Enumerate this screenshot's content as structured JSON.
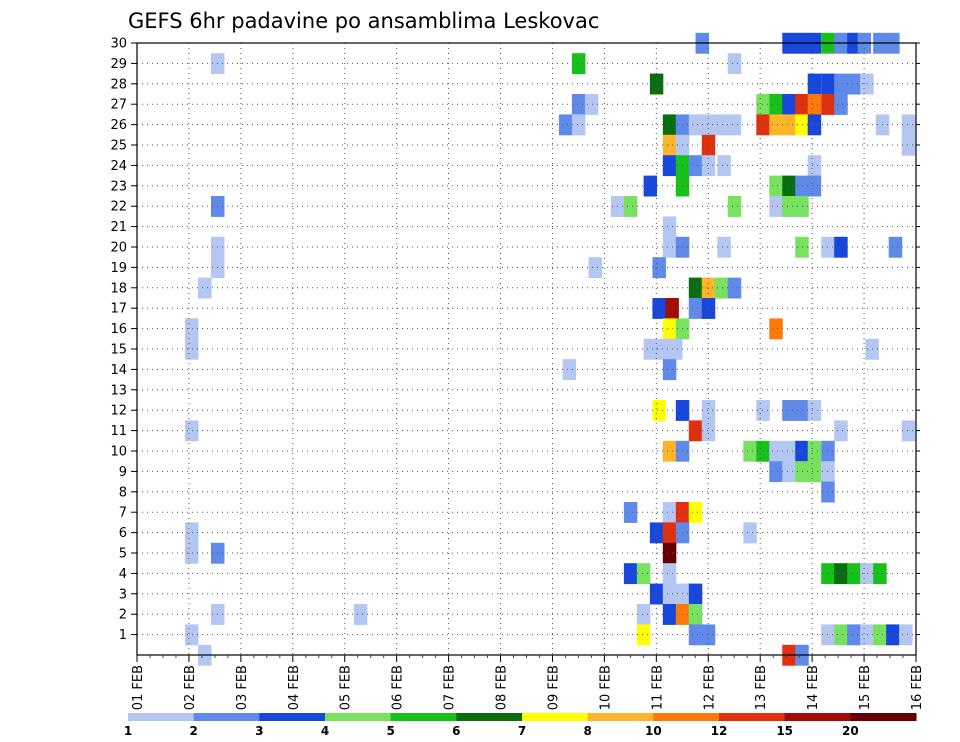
{
  "chart_data": {
    "type": "heatmap",
    "title": "GEFS 6hr padavine po ansamblima Leskovac",
    "xlabel": "",
    "ylabel": "",
    "x_range": [
      0,
      15
    ],
    "y_range": [
      0,
      30
    ],
    "y_ticks": [
      "1",
      "2",
      "3",
      "4",
      "5",
      "6",
      "7",
      "8",
      "9",
      "10",
      "11",
      "12",
      "13",
      "14",
      "15",
      "16",
      "17",
      "18",
      "19",
      "20",
      "21",
      "22",
      "23",
      "24",
      "25",
      "26",
      "27",
      "28",
      "29",
      "30"
    ],
    "x_ticks": [
      "01 FEB",
      "02 FEB",
      "03 FEB",
      "04 FEB",
      "05 FEB",
      "06 FEB",
      "07 FEB",
      "08 FEB",
      "09 FEB",
      "10 FEB",
      "11 FEB",
      "12 FEB",
      "13 FEB",
      "14 FEB",
      "15 FEB",
      "16 FEB"
    ],
    "grid": true,
    "colorbar": {
      "levels": [
        "1",
        "2",
        "3",
        "4",
        "5",
        "6",
        "7",
        "8",
        "10",
        "12",
        "15",
        "20"
      ],
      "colors": [
        "#b4c6f2",
        "#5f8ae9",
        "#1748db",
        "#78e260",
        "#18c01a",
        "#0a6e10",
        "#ffff00",
        "#ffb42a",
        "#fc7a0a",
        "#e1300f",
        "#a00c06",
        "#640000"
      ]
    },
    "cells": [
      [
        10.88,
        30,
        1
      ],
      [
        12.55,
        30,
        2
      ],
      [
        12.8,
        30,
        2
      ],
      [
        13.04,
        30,
        2
      ],
      [
        13.3,
        30,
        4
      ],
      [
        13.55,
        30,
        1
      ],
      [
        13.8,
        30,
        2
      ],
      [
        14.0,
        30,
        1
      ],
      [
        14.3,
        30,
        1
      ],
      [
        14.55,
        30,
        1
      ],
      [
        1.55,
        29,
        0
      ],
      [
        8.5,
        29,
        4
      ],
      [
        11.5,
        29,
        0
      ],
      [
        10.0,
        28,
        5
      ],
      [
        13.04,
        28,
        2
      ],
      [
        13.3,
        28,
        2
      ],
      [
        13.55,
        28,
        1
      ],
      [
        13.8,
        28,
        1
      ],
      [
        14.05,
        28,
        0
      ],
      [
        8.5,
        27,
        1
      ],
      [
        8.75,
        27,
        0
      ],
      [
        12.05,
        27,
        3
      ],
      [
        12.3,
        27,
        4
      ],
      [
        12.55,
        27,
        2
      ],
      [
        12.8,
        27,
        9
      ],
      [
        13.04,
        27,
        8
      ],
      [
        13.3,
        27,
        9
      ],
      [
        13.55,
        27,
        1
      ],
      [
        8.25,
        26,
        1
      ],
      [
        8.5,
        26,
        0
      ],
      [
        10.25,
        26,
        5
      ],
      [
        10.5,
        26,
        1
      ],
      [
        10.75,
        26,
        0
      ],
      [
        11.0,
        26,
        0
      ],
      [
        11.25,
        26,
        0
      ],
      [
        11.5,
        26,
        0
      ],
      [
        12.05,
        26,
        9
      ],
      [
        12.3,
        26,
        7
      ],
      [
        12.55,
        26,
        7
      ],
      [
        12.8,
        26,
        6
      ],
      [
        13.04,
        26,
        2
      ],
      [
        14.35,
        26,
        0
      ],
      [
        14.85,
        26,
        0
      ],
      [
        10.25,
        25,
        7
      ],
      [
        10.5,
        25,
        0
      ],
      [
        11.0,
        25,
        9
      ],
      [
        14.85,
        25,
        0
      ],
      [
        10.25,
        24,
        2
      ],
      [
        10.5,
        24,
        4
      ],
      [
        10.75,
        24,
        1
      ],
      [
        11.0,
        24,
        0
      ],
      [
        11.3,
        24,
        0
      ],
      [
        13.04,
        24,
        0
      ],
      [
        9.88,
        23,
        2
      ],
      [
        10.5,
        23,
        4
      ],
      [
        12.3,
        23,
        3
      ],
      [
        12.55,
        23,
        5
      ],
      [
        12.8,
        23,
        1
      ],
      [
        13.04,
        23,
        1
      ],
      [
        1.55,
        22,
        1
      ],
      [
        9.25,
        22,
        0
      ],
      [
        9.5,
        22,
        3
      ],
      [
        11.5,
        22,
        3
      ],
      [
        12.3,
        22,
        0
      ],
      [
        12.55,
        22,
        3
      ],
      [
        12.8,
        22,
        3
      ],
      [
        10.25,
        21,
        0
      ],
      [
        1.55,
        20,
        0
      ],
      [
        10.25,
        20,
        0
      ],
      [
        10.5,
        20,
        1
      ],
      [
        11.3,
        20,
        0
      ],
      [
        12.8,
        20,
        3
      ],
      [
        13.3,
        20,
        0
      ],
      [
        13.55,
        20,
        2
      ],
      [
        14.6,
        20,
        1
      ],
      [
        1.55,
        19,
        0
      ],
      [
        8.82,
        19,
        0
      ],
      [
        10.05,
        19,
        1
      ],
      [
        1.3,
        18,
        0
      ],
      [
        10.75,
        18,
        5
      ],
      [
        11.0,
        18,
        7
      ],
      [
        11.25,
        18,
        3
      ],
      [
        11.5,
        18,
        1
      ],
      [
        10.05,
        17,
        2
      ],
      [
        10.3,
        17,
        10
      ],
      [
        10.75,
        17,
        1
      ],
      [
        11.0,
        17,
        2
      ],
      [
        1.05,
        16,
        0
      ],
      [
        10.25,
        16,
        6
      ],
      [
        10.5,
        16,
        3
      ],
      [
        12.3,
        16,
        8
      ],
      [
        1.05,
        15,
        0
      ],
      [
        9.88,
        15,
        0
      ],
      [
        10.12,
        15,
        0
      ],
      [
        10.37,
        15,
        0
      ],
      [
        14.15,
        15,
        0
      ],
      [
        10.25,
        14,
        1
      ],
      [
        8.32,
        14,
        0
      ],
      [
        10.05,
        12,
        6
      ],
      [
        10.5,
        12,
        2
      ],
      [
        11.0,
        12,
        0
      ],
      [
        12.05,
        12,
        0
      ],
      [
        12.55,
        12,
        1
      ],
      [
        12.8,
        12,
        1
      ],
      [
        13.04,
        12,
        0
      ],
      [
        1.05,
        11,
        0
      ],
      [
        10.75,
        11,
        9
      ],
      [
        11.0,
        11,
        0
      ],
      [
        13.55,
        11,
        0
      ],
      [
        14.85,
        11,
        0
      ],
      [
        10.25,
        10,
        7
      ],
      [
        10.5,
        10,
        1
      ],
      [
        11.8,
        10,
        3
      ],
      [
        12.05,
        10,
        4
      ],
      [
        12.3,
        10,
        0
      ],
      [
        12.55,
        10,
        0
      ],
      [
        12.8,
        10,
        2
      ],
      [
        13.04,
        10,
        3
      ],
      [
        13.3,
        10,
        1
      ],
      [
        12.3,
        9,
        1
      ],
      [
        12.55,
        9,
        0
      ],
      [
        12.8,
        9,
        3
      ],
      [
        13.04,
        9,
        3
      ],
      [
        13.3,
        9,
        0
      ],
      [
        13.3,
        8,
        1
      ],
      [
        9.5,
        7,
        1
      ],
      [
        10.25,
        7,
        0
      ],
      [
        10.5,
        7,
        9
      ],
      [
        10.75,
        7,
        6
      ],
      [
        1.05,
        6,
        0
      ],
      [
        10.0,
        6,
        2
      ],
      [
        10.25,
        6,
        9
      ],
      [
        10.5,
        6,
        1
      ],
      [
        11.8,
        6,
        0
      ],
      [
        1.05,
        5,
        0
      ],
      [
        1.55,
        5,
        1
      ],
      [
        10.25,
        5,
        11
      ],
      [
        9.5,
        4,
        2
      ],
      [
        9.75,
        4,
        3
      ],
      [
        10.25,
        4,
        0
      ],
      [
        13.3,
        4,
        4
      ],
      [
        13.55,
        4,
        5
      ],
      [
        13.8,
        4,
        4
      ],
      [
        14.05,
        4,
        0
      ],
      [
        14.3,
        4,
        4
      ],
      [
        10.0,
        3,
        2
      ],
      [
        10.25,
        3,
        0
      ],
      [
        10.5,
        3,
        0
      ],
      [
        10.75,
        3,
        2
      ],
      [
        1.55,
        2,
        0
      ],
      [
        4.3,
        2,
        0
      ],
      [
        9.75,
        2,
        0
      ],
      [
        10.25,
        2,
        2
      ],
      [
        10.5,
        2,
        8
      ],
      [
        10.75,
        2,
        3
      ],
      [
        1.05,
        1,
        0
      ],
      [
        9.75,
        1,
        6
      ],
      [
        10.75,
        1,
        1
      ],
      [
        11.0,
        1,
        1
      ],
      [
        13.3,
        1,
        0
      ],
      [
        13.55,
        1,
        3
      ],
      [
        13.8,
        1,
        1
      ],
      [
        14.05,
        1,
        0
      ],
      [
        14.3,
        1,
        3
      ],
      [
        14.55,
        1,
        2
      ],
      [
        14.8,
        1,
        0
      ],
      [
        1.3,
        0,
        0
      ],
      [
        12.55,
        0,
        9
      ],
      [
        12.8,
        0,
        1
      ]
    ]
  }
}
